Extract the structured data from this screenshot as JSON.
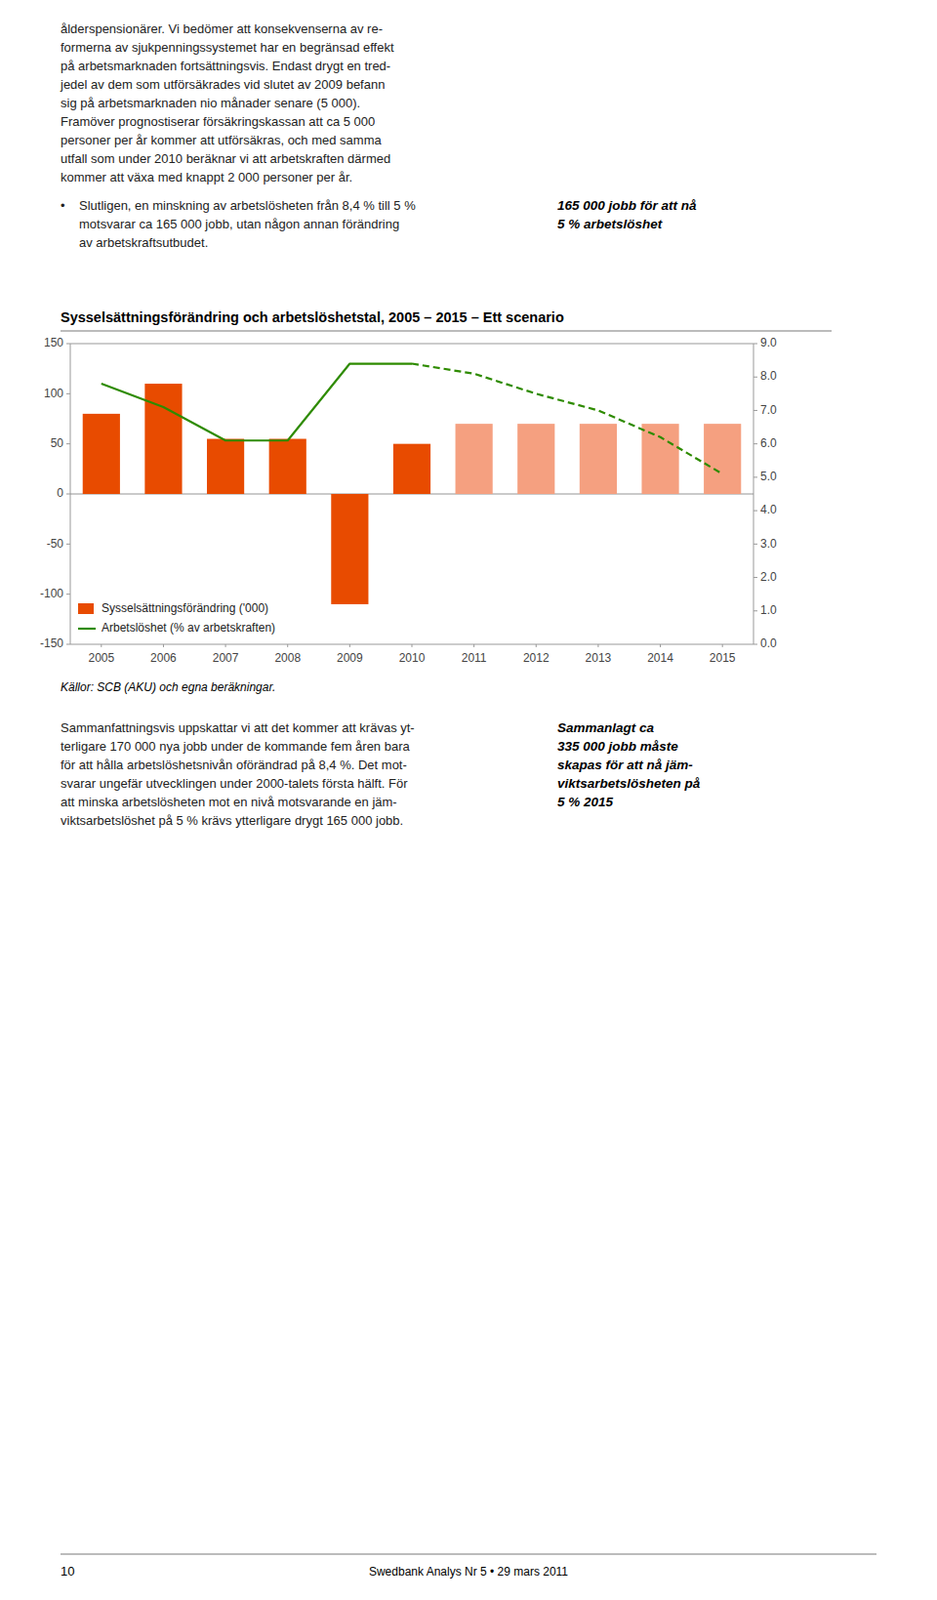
{
  "chart_data": {
    "type": "bar",
    "title": "Sysselsättningsförändring och arbetslöshetstal, 2005 – 2015 – Ett scenario",
    "source": "Källor: SCB (AKU) och egna beräkningar.",
    "categories": [
      "2005",
      "2006",
      "2007",
      "2008",
      "2009",
      "2010",
      "2011",
      "2012",
      "2013",
      "2014",
      "2015"
    ],
    "series": [
      {
        "name": "Sysselsättningsförändring ('000)",
        "type": "bar",
        "color": "#E84B00",
        "colors": [
          "#E84B00",
          "#E84B00",
          "#E84B00",
          "#E84B00",
          "#E84B00",
          "#E84B00",
          "#F5A080",
          "#F5A080",
          "#F5A080",
          "#F5A080",
          "#F5A080"
        ],
        "values": [
          80,
          110,
          55,
          55,
          -110,
          50,
          70,
          70,
          70,
          70,
          70
        ]
      },
      {
        "name": "Arbetslöshet (% av arbetskraften)",
        "type": "line",
        "axis": "y2",
        "color": "#2E8B00",
        "line_style": "solid",
        "values": [
          7.8,
          7.1,
          6.1,
          6.1,
          8.4,
          8.4,
          null,
          null,
          null,
          null,
          null
        ]
      },
      {
        "type": "line",
        "axis": "y2",
        "color": "#2E8B00",
        "line_style": "dashed",
        "values": [
          null,
          null,
          null,
          null,
          null,
          8.4,
          8.1,
          7.5,
          7.0,
          6.2,
          5.1
        ]
      }
    ],
    "ylim": [
      -150,
      150
    ],
    "yticks": [
      -150,
      -100,
      -50,
      0,
      50,
      100,
      150
    ],
    "y2lim": [
      0.0,
      9.0
    ],
    "y2ticks": [
      {
        "value": 0.0,
        "label": "0.0"
      },
      {
        "value": 1.0,
        "label": "1.0"
      },
      {
        "value": 2.0,
        "label": "2.0"
      },
      {
        "value": 3.0,
        "label": "3.0"
      },
      {
        "value": 4.0,
        "label": "4.0"
      },
      {
        "value": 5.0,
        "label": "5.0"
      },
      {
        "value": 6.0,
        "label": "6.0"
      },
      {
        "value": 7.0,
        "label": "7.0"
      },
      {
        "value": 8.0,
        "label": "8.0"
      },
      {
        "value": 9.0,
        "label": "9.0"
      }
    ],
    "grid": false,
    "legend": "lower left"
  },
  "text": {
    "body": [
      "ålderspensionärer. Vi bedömer att konsekvenserna av re-",
      "formerna av sjukpenningssystemet har en begränsad effekt",
      "på arbetsmarknaden fortsättningsvis. Endast drygt en tred-",
      "jedel av dem som utförsäkrades vid slutet av 2009 befann",
      "sig på arbetsmarknaden nio månader senare (5 000).",
      "Framöver prognostiserar försäkringskassan att ca 5 000",
      "personer per år kommer att utförsäkras, och med samma",
      "utfall som under 2010 beräknar vi att arbetskraften därmed",
      "kommer att växa med knappt 2 000 personer per år."
    ],
    "bullet_mark": "•",
    "bullet": [
      "Slutligen, en minskning av arbetslösheten från 8,4 % till 5 %",
      "motsvarar ca 165 000 jobb, utan någon annan förändring",
      "av arbetskraftsutbudet."
    ],
    "callout": [
      "165 000 jobb för att nå",
      "5 % arbetslöshet"
    ],
    "summary": [
      "Sammanfattningsvis uppskattar vi att det kommer att krävas yt-",
      "terligare 170 000 nya jobb under de kommande fem åren bara",
      "för att hålla arbetslöshetsnivån oförändrad på 8,4 %. Det mot-",
      "svarar ungefär utvecklingen under 2000-talets första hälft. För",
      "att minska arbetslösheten mot en nivå motsvarande en jäm-",
      "viktsarbetslöshet på 5 % krävs ytterligare drygt 165 000 jobb."
    ],
    "summary_callout": [
      "Sammanlagt ca",
      "335 000 jobb måste",
      "skapas för att nå jäm-",
      "viktsarbetslösheten på",
      "5 % 2015"
    ],
    "page_number": "10",
    "footer": "Swedbank Analys Nr 5  •  29 mars 2011"
  }
}
